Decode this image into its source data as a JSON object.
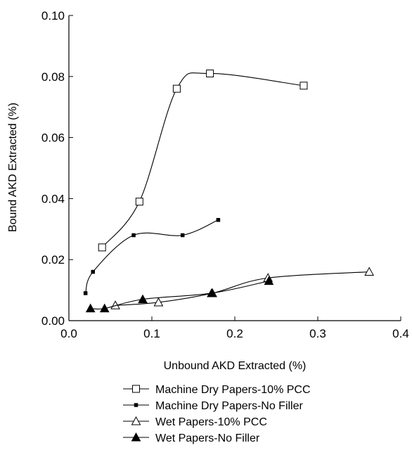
{
  "chart_data": {
    "type": "line",
    "title": "",
    "xlabel": "Unbound AKD Extracted (%)",
    "ylabel": "Bound AKD Extracted (%)",
    "xlim": [
      0,
      0.4
    ],
    "ylim": [
      0,
      0.1
    ],
    "x_ticks": [
      0.0,
      0.1,
      0.2,
      0.3,
      0.4
    ],
    "x_tick_labels": [
      "0.0",
      "0.1",
      "0.2",
      "0.3",
      "0.4"
    ],
    "y_ticks": [
      0.0,
      0.02,
      0.04,
      0.06,
      0.08,
      0.1
    ],
    "y_tick_labels": [
      "0.00",
      "0.02",
      "0.04",
      "0.06",
      "0.08",
      "0.10"
    ],
    "grid": false,
    "legend_position": "bottom",
    "series": [
      {
        "name": "Machine Dry Papers-10% PCC",
        "marker": "open-square",
        "x": [
          0.04,
          0.085,
          0.13,
          0.17,
          0.283
        ],
        "y": [
          0.024,
          0.039,
          0.076,
          0.081,
          0.077
        ]
      },
      {
        "name": "Machine Dry Papers-No Filler",
        "marker": "small-filled-square",
        "x": [
          0.02,
          0.029,
          0.078,
          0.137,
          0.18
        ],
        "y": [
          0.009,
          0.016,
          0.028,
          0.028,
          0.033
        ]
      },
      {
        "name": "Wet Papers-10% PCC",
        "marker": "open-triangle",
        "x": [
          0.056,
          0.108,
          0.173,
          0.24,
          0.362
        ],
        "y": [
          0.005,
          0.006,
          0.009,
          0.014,
          0.016
        ]
      },
      {
        "name": "Wet Papers-No Filler",
        "marker": "filled-triangle",
        "x": [
          0.026,
          0.043,
          0.089,
          0.172,
          0.241
        ],
        "y": [
          0.004,
          0.004,
          0.007,
          0.009,
          0.013
        ]
      }
    ]
  }
}
